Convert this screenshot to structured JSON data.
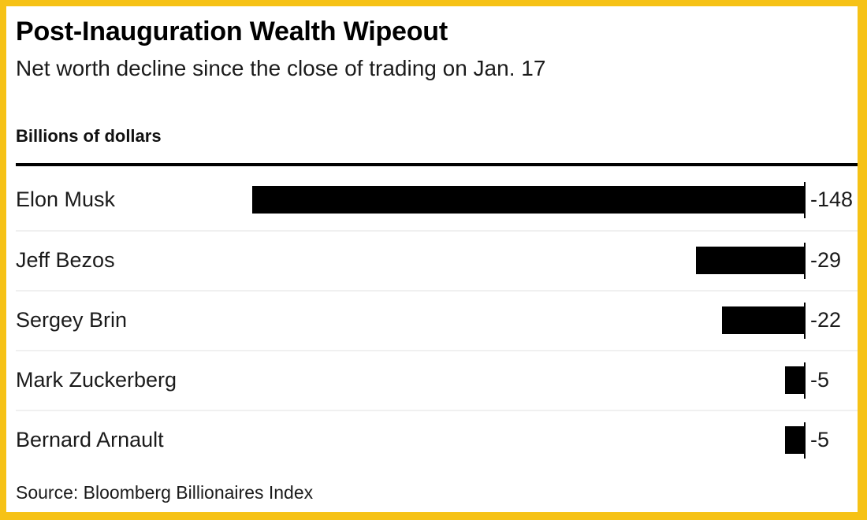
{
  "chart_data": {
    "type": "bar",
    "orientation": "horizontal",
    "title": "Post-Inauguration Wealth Wipeout",
    "subtitle": "Net worth decline since the close of trading on Jan. 17",
    "unit_label": "Billions of dollars",
    "categories": [
      "Elon Musk",
      "Jeff Bezos",
      "Sergey Brin",
      "Mark Zuckerberg",
      "Bernard Arnault"
    ],
    "values": [
      -148,
      -29,
      -22,
      -5,
      -5
    ],
    "value_labels": [
      "-148",
      "-29",
      "-22",
      "-5",
      "-5"
    ],
    "baseline_value": 0,
    "bar_color": "#000000",
    "grid": false,
    "legend": "none",
    "x_axis_ticks": "none",
    "source": "Source: Bloomberg Billionaires Index"
  },
  "style": {
    "frame_border_color": "#F6C216",
    "background": "#FFFFFF",
    "separator_color": "#F0F0F0",
    "axis_line_color": "#000000",
    "text_color": "#1B1B1B"
  }
}
